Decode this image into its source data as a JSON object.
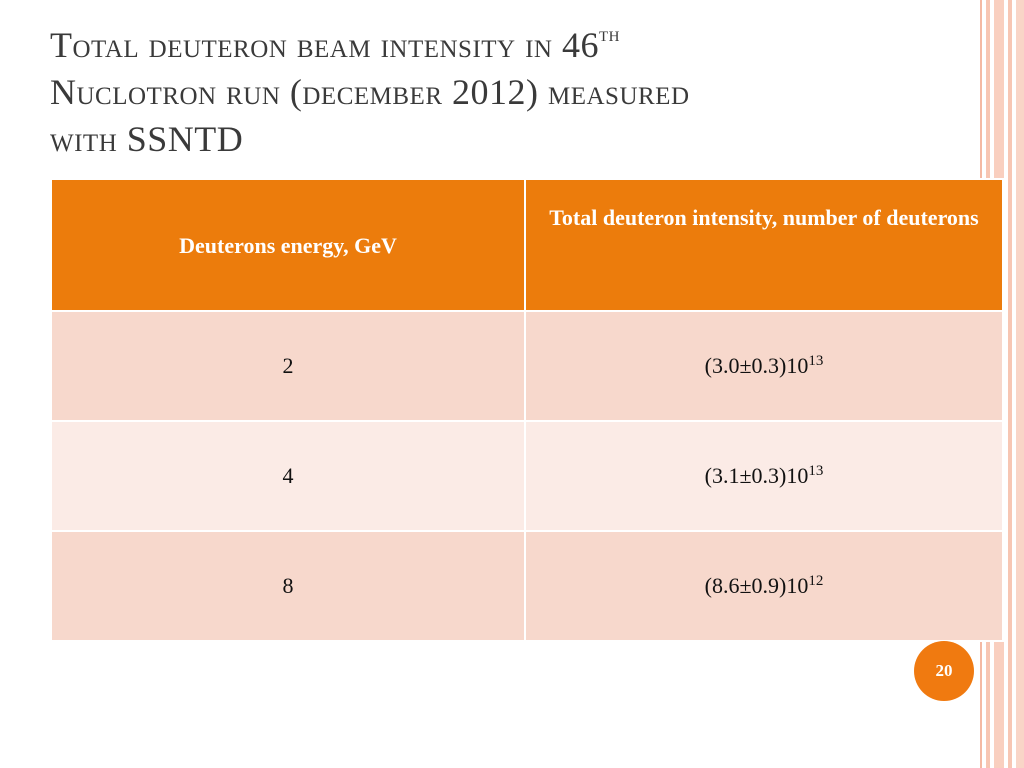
{
  "slide": {
    "title": {
      "line1_prefix": "Total deuteron beam intensity in 46",
      "line1_sup": "th",
      "line2": "Nuclotron run (december 2012) measured",
      "line3": "with SSNTD"
    },
    "table": {
      "headers": {
        "energy": "Deuterons energy, GeV",
        "intensity": "Total deuteron intensity, number of deuterons"
      },
      "rows": [
        {
          "energy": "2",
          "intensity_base": "(3.0±0.3)10",
          "intensity_exp": "13"
        },
        {
          "energy": "4",
          "intensity_base": "(3.1±0.3)10",
          "intensity_exp": "13"
        },
        {
          "energy": "8",
          "intensity_base": "(8.6±0.9)10",
          "intensity_exp": "12"
        }
      ]
    },
    "page_number": "20",
    "colors": {
      "header_bg": "#ec7c0c",
      "row_odd_bg": "#f7d8cc",
      "row_even_bg": "#fbebe6",
      "accent": "#f07a10"
    }
  }
}
